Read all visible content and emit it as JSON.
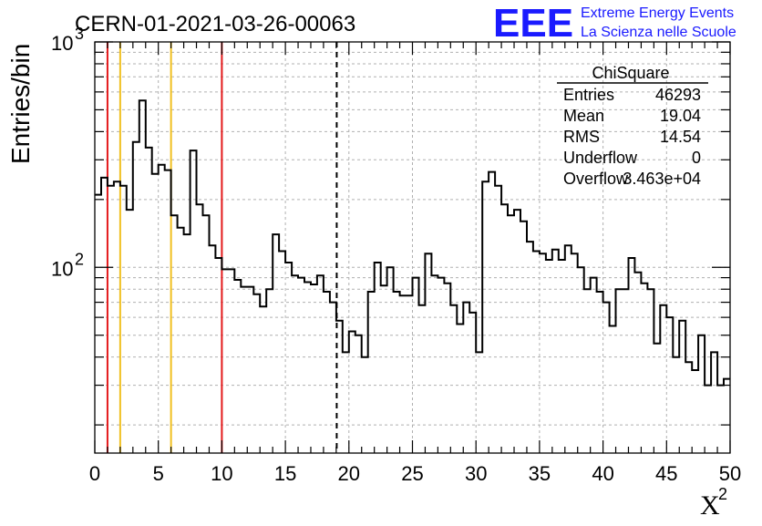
{
  "header": {
    "run_title": "CERN-01-2021-03-26-00063",
    "logo_letters": "EEE",
    "logo_line1": "Extreme Energy Events",
    "logo_line2": "La Scienza nelle Scuole"
  },
  "stats_box": {
    "title": "ChiSquare",
    "rows": [
      {
        "label": "Entries",
        "value": "46293"
      },
      {
        "label": "Mean",
        "value": "19.04"
      },
      {
        "label": "RMS",
        "value": "14.54"
      },
      {
        "label": "Underflow",
        "value": "0"
      },
      {
        "label": "Overflow",
        "value": "3.463e+04"
      }
    ]
  },
  "colors": {
    "histogram": "#000000",
    "red_lines": "#e41a1c",
    "yellow_lines": "#f0c020",
    "mean_line": "#000000",
    "grid": "#b0b0b0",
    "logo": "#1a1aff"
  },
  "chart_data": {
    "type": "histogram",
    "title": "CERN-01-2021-03-26-00063",
    "xlabel": "X",
    "xlabel_superscript": "2",
    "ylabel": "Entries/bin",
    "xlim": [
      0,
      50
    ],
    "ylim": [
      15,
      1000
    ],
    "y_scale": "log",
    "grid": true,
    "bin_width": 0.5,
    "x_ticks": [
      0,
      5,
      10,
      15,
      20,
      25,
      30,
      35,
      40,
      45,
      50
    ],
    "x_tick_labels": [
      "0",
      "5",
      "10",
      "15",
      "20",
      "25",
      "30",
      "35",
      "40",
      "45",
      "50"
    ],
    "y_tick_labels": [
      {
        "value": 100,
        "base": "10",
        "exp": "2"
      },
      {
        "value": 1000,
        "base": "10",
        "exp": "3"
      }
    ],
    "vertical_lines": [
      {
        "x": 1,
        "style": "red"
      },
      {
        "x": 2,
        "style": "yellow"
      },
      {
        "x": 6,
        "style": "yellow"
      },
      {
        "x": 10,
        "style": "red"
      },
      {
        "x": 19.04,
        "style": "mean-dashed"
      }
    ],
    "values": [
      210,
      250,
      230,
      240,
      230,
      180,
      360,
      550,
      340,
      260,
      285,
      270,
      170,
      150,
      140,
      330,
      190,
      170,
      125,
      110,
      98,
      98,
      88,
      82,
      82,
      76,
      67,
      80,
      140,
      118,
      105,
      92,
      90,
      86,
      84,
      92,
      78,
      70,
      58,
      42,
      52,
      50,
      40,
      78,
      105,
      83,
      100,
      78,
      75,
      75,
      90,
      68,
      115,
      92,
      90,
      85,
      68,
      56,
      70,
      63,
      42,
      240,
      265,
      230,
      190,
      170,
      180,
      160,
      130,
      118,
      115,
      108,
      120,
      108,
      125,
      115,
      100,
      80,
      90,
      78,
      70,
      55,
      80,
      80,
      110,
      95,
      85,
      80,
      46,
      68,
      60,
      40,
      58,
      38,
      35,
      50,
      30,
      42,
      30,
      32
    ]
  }
}
